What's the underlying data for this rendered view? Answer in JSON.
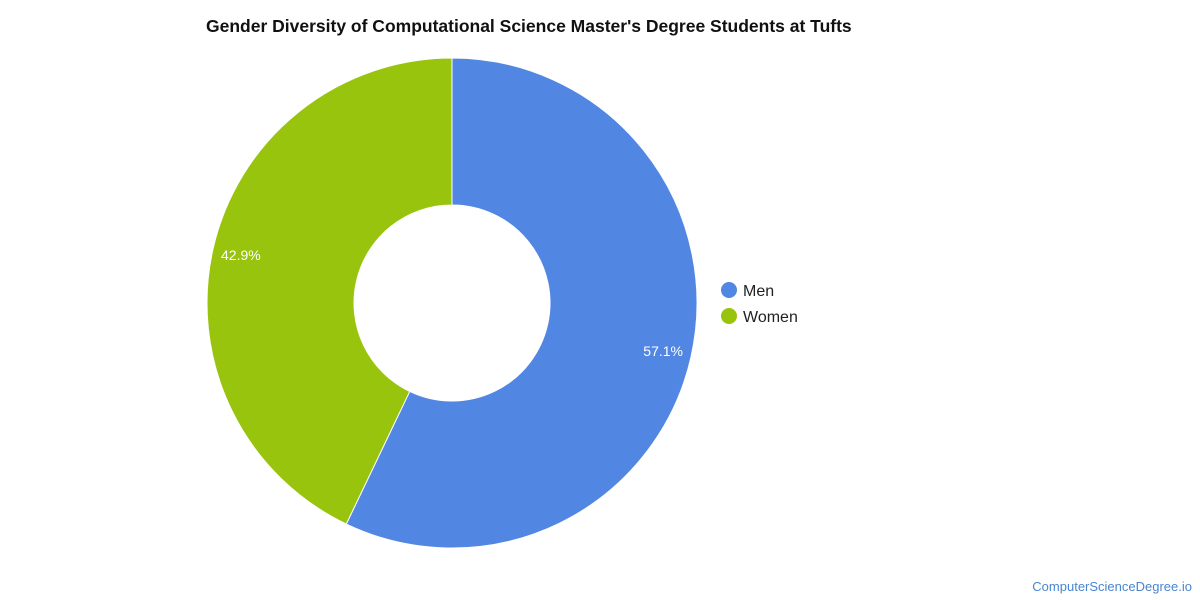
{
  "chart_data": {
    "type": "pie",
    "title": "Gender Diversity of Computational Science Master's Degree Students at Tufts",
    "donut": true,
    "legend_position": "right",
    "slices": [
      {
        "label": "Men",
        "value": 57.1,
        "display": "57.1%",
        "color": "#5286e3"
      },
      {
        "label": "Women",
        "value": 42.9,
        "display": "42.9%",
        "color": "#98c40d"
      }
    ]
  },
  "watermark": "ComputerScienceDegree.io"
}
